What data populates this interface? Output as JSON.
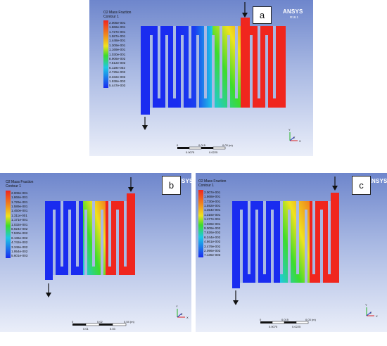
{
  "panels": [
    {
      "id": "a",
      "letter": "a",
      "legend_title": "O2 Mass Fraction",
      "legend_subtitle": "Contour 1",
      "legend_values": [
        "2.005e-001",
        "1.866e-001",
        "1.727e-001",
        "1.587e-001",
        "1.448e-001",
        "1.309e-001",
        "1.169e-001",
        "1.030e-001",
        "8.906e-002",
        "7.512e-002",
        "6.119e-002",
        "4.725e-002",
        "3.332e-002",
        "1.938e-002",
        "5.447e-003"
      ],
      "brand": "ANSYS",
      "brand_version": "R18.1",
      "scale_ticks": [
        "0",
        "0.015",
        "0.03  (m)"
      ],
      "scale_ticks_lower": [
        "0.0075",
        "0.0225"
      ],
      "axis_labels": [
        "Y",
        "Z",
        "X"
      ]
    },
    {
      "id": "b",
      "letter": "b",
      "legend_title": "O2 Mass Fraction",
      "legend_subtitle": "Contour 1",
      "legend_values": [
        "2.008e-001",
        "1.868e-001",
        "1.729e-001",
        "1.589e-001",
        "1.450e-001",
        "1.311e-001",
        "1.171e-001",
        "1.032e-001",
        "8.924e-002",
        "7.530e-002",
        "6.136e-002",
        "4.742e-002",
        "3.348e-002",
        "1.954e-002",
        "5.601e-003"
      ],
      "brand": "ANSYS",
      "brand_version": "",
      "scale_ticks": [
        "0",
        "0.02",
        "0.04  (m)"
      ],
      "scale_ticks_lower": [
        "0.01",
        "0.03"
      ],
      "axis_labels": [
        "Y",
        "Z",
        "X"
      ]
    },
    {
      "id": "c",
      "letter": "c",
      "legend_title": "O2 Mass Fraction",
      "legend_subtitle": "Contour 1",
      "legend_values": [
        "2.007e-001",
        "1.868e-001",
        "1.730e-001",
        "1.592e-001",
        "1.454e-001",
        "1.316e-001",
        "1.177e-001",
        "1.039e-001",
        "9.009e-002",
        "7.626e-002",
        "6.244e-002",
        "4.861e-002",
        "3.479e-002",
        "2.096e-002",
        "7.135e-003"
      ],
      "brand": "ANSYS",
      "brand_version": "",
      "scale_ticks": [
        "0",
        "0.015",
        "0.03  (m)"
      ],
      "scale_ticks_lower": [
        "0.0075",
        "0.0225"
      ],
      "axis_labels": [
        "Y",
        "Z",
        "X"
      ]
    }
  ],
  "colors": {
    "low": "#1a2cf0",
    "cyan": "#1ec8e6",
    "green": "#3ddc2c",
    "yellow": "#f0e21e",
    "orange": "#f0821e",
    "high": "#f0261e",
    "arrow": "#111111"
  },
  "icons": [
    "arrow-down-icon",
    "axis-triad-icon",
    "scale-bar-icon",
    "colormap-legend-icon"
  ]
}
